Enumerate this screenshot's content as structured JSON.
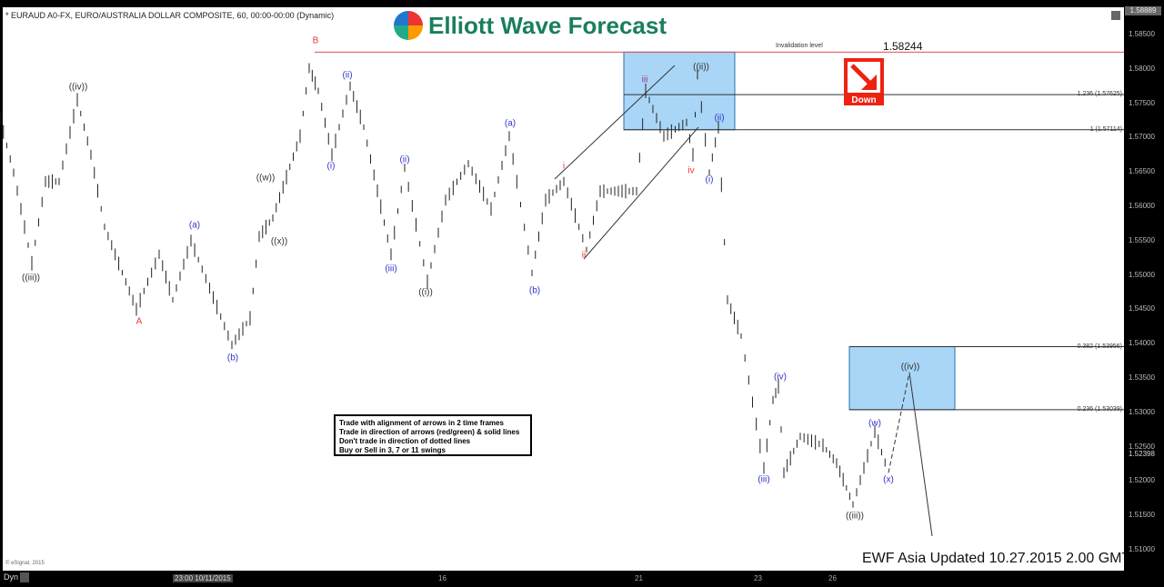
{
  "header": {
    "title": "* EURAUD A0-FX, EURO/AUSTRALIA DOLLAR COMPOSITE, 60, 00:00-00:00 (Dynamic)",
    "logo": "Elliott Wave Forecast"
  },
  "chart_data": {
    "type": "line",
    "note_style": "OHLC bars (60 min)",
    "y_ticks": [
      "1.58500",
      "1.58000",
      "1.57500",
      "1.57000",
      "1.56500",
      "1.56000",
      "1.55500",
      "1.55000",
      "1.54500",
      "1.54000",
      "1.53500",
      "1.53000",
      "1.52500",
      "1.52000",
      "1.51500",
      "1.51000"
    ],
    "ylim": [
      1.508,
      1.589
    ],
    "last_price_top": "1.58889",
    "current_price": "1.52398",
    "x_ticks": [
      "23:00 10/11/2015",
      "16",
      "21",
      "23",
      "26"
    ],
    "price_path": [
      1.5728,
      1.5649,
      1.5517,
      1.5636,
      1.5636,
      1.5755,
      1.5675,
      1.557,
      1.545,
      1.553,
      1.5464,
      1.555,
      1.5398,
      1.5437,
      1.5556,
      1.5583,
      1.5702,
      1.5801,
      1.5768,
      1.5675,
      1.5775,
      1.5715,
      1.553,
      1.5656,
      1.549,
      1.5609,
      1.5662,
      1.5596,
      1.5702,
      1.5503,
      1.5609,
      1.5636,
      1.5537,
      1.5622,
      1.5622,
      1.5768,
      1.5702,
      1.5722,
      1.5675,
      1.5792,
      1.5649,
      1.5715,
      1.5464,
      1.5411,
      1.5219,
      1.5318,
      1.5338,
      1.5212,
      1.5265,
      1.5252,
      1.5226,
      1.5166,
      1.5272,
      1.5212
    ],
    "projection": {
      "dashed_to": 1.5358,
      "solid_to": 1.512
    },
    "levels": [
      {
        "label": "Invalidation level",
        "value": "1.58244",
        "price": 1.58244,
        "color": "#e05050"
      },
      {
        "label": "1.236 (1.57625)",
        "price": 1.57625
      },
      {
        "label": "1 (1.57114)",
        "price": 1.57114
      },
      {
        "label": "0.382 (1.53956)",
        "price": 1.53956
      },
      {
        "label": "0.236 (1.53039)",
        "price": 1.53039
      }
    ],
    "wave_labels": [
      {
        "text": "((iii))",
        "color": "#333"
      },
      {
        "text": "((iv))",
        "color": "#333"
      },
      {
        "text": "A",
        "color": "#e33"
      },
      {
        "text": "(a)",
        "color": "#33c"
      },
      {
        "text": "(b)",
        "color": "#33c"
      },
      {
        "text": "((w))",
        "color": "#333"
      },
      {
        "text": "((x))",
        "color": "#333"
      },
      {
        "text": "B",
        "color": "#e33"
      },
      {
        "text": "(i)",
        "color": "#33c"
      },
      {
        "text": "(ii)",
        "color": "#33c"
      },
      {
        "text": "(iii)",
        "color": "#33c"
      },
      {
        "text": "(ii)",
        "color": "#33c"
      },
      {
        "text": "((i))",
        "color": "#333"
      },
      {
        "text": "(a)",
        "color": "#33c"
      },
      {
        "text": "(b)",
        "color": "#33c"
      },
      {
        "text": "i",
        "color": "#e33"
      },
      {
        "text": "ii",
        "color": "#e33"
      },
      {
        "text": "iii",
        "color": "#a03080"
      },
      {
        "text": "iv",
        "color": "#e33"
      },
      {
        "text": "((ii))",
        "color": "#333"
      },
      {
        "text": "(ii)",
        "color": "#33c"
      },
      {
        "text": "(i)",
        "color": "#33c"
      },
      {
        "text": "(iii)",
        "color": "#33c"
      },
      {
        "text": "(iv)",
        "color": "#33c"
      },
      {
        "text": "((iii))",
        "color": "#333"
      },
      {
        "text": "(w)",
        "color": "#33c"
      },
      {
        "text": "(x)",
        "color": "#33c"
      },
      {
        "text": "((iv))",
        "color": "#333"
      }
    ],
    "signal": {
      "label": "Down",
      "color": "#e21"
    },
    "box_color": "#a9d6f7"
  },
  "rules": [
    "Trade with alignment of arrows in 2 time frames",
    "Trade in direction of arrows (red/green) & solid lines",
    "Don't trade in direction of dotted lines",
    "Buy or Sell in 3, 7 or 11 swings"
  ],
  "footer": {
    "updated": "EWF Asia Updated 10.27.2015 2.00 GMT",
    "copyright": "© eSignal, 2015",
    "dyn": "Dyn"
  }
}
